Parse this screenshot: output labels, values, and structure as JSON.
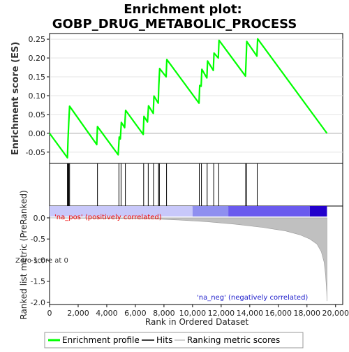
{
  "chart_data": {
    "type": "line",
    "title_line1": "Enrichment plot:",
    "title_line2": "GOBP_DRUG_METABOLIC_PROCESS",
    "enrichment": {
      "ylabel": "Enrichment score (ES)",
      "ylim": [
        -0.08,
        0.265
      ],
      "yticks": [
        -0.05,
        0.0,
        0.05,
        0.1,
        0.15,
        0.2,
        0.25
      ],
      "ytick_labels": [
        "-0.05",
        "0.00",
        "0.05",
        "0.10",
        "0.15",
        "0.20",
        "0.25"
      ],
      "line_color": "#00ff00",
      "points": [
        [
          0,
          0.0
        ],
        [
          1250,
          -0.065
        ],
        [
          1290,
          -0.018
        ],
        [
          1340,
          0.027
        ],
        [
          1400,
          0.072
        ],
        [
          3300,
          -0.03
        ],
        [
          3350,
          0.018
        ],
        [
          4800,
          -0.057
        ],
        [
          4870,
          -0.01
        ],
        [
          4950,
          -0.015
        ],
        [
          5020,
          0.029
        ],
        [
          5250,
          0.015
        ],
        [
          5320,
          0.061
        ],
        [
          6550,
          -0.003
        ],
        [
          6600,
          0.045
        ],
        [
          6850,
          0.03
        ],
        [
          6920,
          0.073
        ],
        [
          7250,
          0.053
        ],
        [
          7300,
          0.099
        ],
        [
          7600,
          0.08
        ],
        [
          7640,
          0.127
        ],
        [
          7700,
          0.172
        ],
        [
          8150,
          0.15
        ],
        [
          8200,
          0.196
        ],
        [
          10450,
          0.08
        ],
        [
          10500,
          0.127
        ],
        [
          10600,
          0.125
        ],
        [
          10650,
          0.17
        ],
        [
          11000,
          0.147
        ],
        [
          11050,
          0.192
        ],
        [
          11450,
          0.167
        ],
        [
          11500,
          0.213
        ],
        [
          11800,
          0.2
        ],
        [
          11850,
          0.247
        ],
        [
          13700,
          0.152
        ],
        [
          13750,
          0.2
        ],
        [
          13790,
          0.244
        ],
        [
          14500,
          0.205
        ],
        [
          14550,
          0.251
        ],
        [
          19400,
          0.0
        ]
      ]
    },
    "hits": {
      "positions": [
        1250,
        1290,
        1340,
        1400,
        3350,
        4850,
        5000,
        5300,
        6580,
        6900,
        7270,
        7620,
        7680,
        8180,
        10470,
        10620,
        11020,
        11480,
        11830,
        13720,
        13760,
        14520
      ]
    },
    "ranked": {
      "ylabel": "Ranked list metric (PreRanked)",
      "ylim": [
        -2.05,
        0.28
      ],
      "yticks": [
        0.0,
        -0.5,
        -1.0,
        -1.5,
        -2.0
      ],
      "ytick_labels": [
        "0.0",
        "-0.5",
        "-1.0",
        "-1.5",
        "-2.0"
      ],
      "fill_color": "#c0c0c0",
      "curve": [
        [
          0,
          0.0
        ],
        [
          7000,
          -0.02
        ],
        [
          9000,
          -0.05
        ],
        [
          11000,
          -0.09
        ],
        [
          13000,
          -0.15
        ],
        [
          15000,
          -0.23
        ],
        [
          16500,
          -0.31
        ],
        [
          17500,
          -0.4
        ],
        [
          18200,
          -0.5
        ],
        [
          18700,
          -0.62
        ],
        [
          19000,
          -0.8
        ],
        [
          19200,
          -1.05
        ],
        [
          19300,
          -1.35
        ],
        [
          19380,
          -1.75
        ],
        [
          19400,
          -1.97
        ]
      ],
      "pos_label": "'na_pos' (positively correlated)",
      "neg_label": "'na_neg' (negatively correlated)",
      "zero_label": "Zero score at 0",
      "heat_segments": [
        {
          "from": 0,
          "to": 10000,
          "color": "#c8c8fa"
        },
        {
          "from": 10000,
          "to": 12500,
          "color": "#8f8ff0"
        },
        {
          "from": 12500,
          "to": 18200,
          "color": "#6a5aee"
        },
        {
          "from": 18200,
          "to": 19400,
          "color": "#2200cc"
        }
      ]
    },
    "xaxis": {
      "xlabel": "Rank in Ordered Dataset",
      "xlim": [
        0,
        20500
      ],
      "xticks": [
        0,
        2000,
        4000,
        6000,
        8000,
        10000,
        12000,
        14000,
        16000,
        18000,
        20000
      ],
      "xtick_labels": [
        "0",
        "2,000",
        "4,000",
        "6,000",
        "8,000",
        "10,000",
        "12,000",
        "14,000",
        "16,000",
        "18,000",
        "20,000"
      ]
    },
    "legend": {
      "placement": "bottom",
      "items": [
        {
          "label": "Enrichment profile",
          "color": "#00ff00"
        },
        {
          "label": "Hits",
          "color": "#000000"
        },
        {
          "label": "Ranking metric scores",
          "color": "#c0c0c0"
        }
      ]
    }
  }
}
